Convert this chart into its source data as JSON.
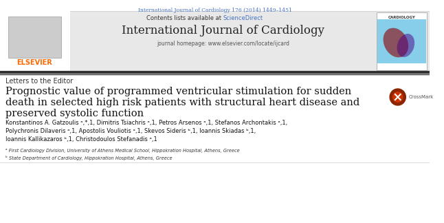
{
  "bg_color": "#ffffff",
  "header_bar_color": "#e8e8e8",
  "top_journal_line": "International Journal of Cardiology 176 (2014) 1449–1451",
  "top_journal_line_color": "#4472c4",
  "contents_line": "Contents lists available at",
  "sciencedirect_text": "ScienceDirect",
  "sciencedirect_color": "#4472c4",
  "journal_title": "International Journal of Cardiology",
  "homepage_line": "journal homepage: www.elsevier.com/locate/ijcard",
  "section_label": "Letters to the Editor",
  "article_title_line1": "Prognostic value of programmed ventricular stimulation for sudden",
  "article_title_line2": "death in selected high risk patients with structural heart disease and",
  "article_title_line3": "preserved systolic function",
  "authors_line1": "Konstantinos A. Gatzoulis ᵃ,*,1, Dimitris Tsiachris ᵃ,1, Petros Arsenos ᵃ,1, Stefanos Archontakis ᵃ,1,",
  "authors_line2": "Polychronis Dilaveris ᵃ,1, Apostolis Vouliotis ᵃ,1, Skevos Sideris ᵇ,1, Ioannis Skiadas ᵇ,1,",
  "authors_line3": "Ioannis Kallikazaros ᵇ,1, Christodoulos Stefanadis ᵃ,1",
  "affil1": "ᵃ First Cardiology Division, University of Athens Medical School, Hippokration Hospital, Athens, Greece",
  "affil2": "ᵇ State Department of Cardiology, Hippokration Hospital, Athens, Greece",
  "elsevier_color": "#ff6600",
  "thick_border_color": "#333333",
  "thin_border_color": "#cccccc"
}
